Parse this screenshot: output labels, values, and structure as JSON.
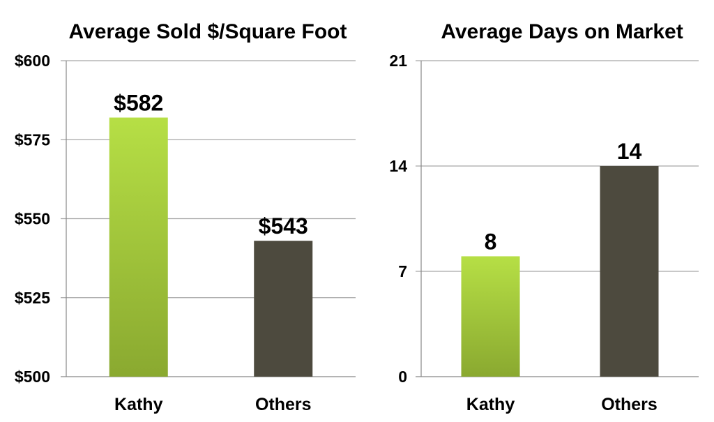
{
  "chart_data": [
    {
      "type": "bar",
      "title": "Average Sold $/Square Foot",
      "categories": [
        "Kathy",
        "Others"
      ],
      "values": [
        582,
        543
      ],
      "data_labels": [
        "$582",
        "$543"
      ],
      "ylim": [
        500,
        600
      ],
      "yticks": [
        500,
        525,
        550,
        575,
        600
      ],
      "ytick_labels": [
        "$500",
        "$525",
        "$550",
        "$575",
        "$600"
      ],
      "colors": [
        "#9cc13a",
        "#4d4a3e"
      ],
      "grid": true,
      "legend": "none"
    },
    {
      "type": "bar",
      "title": "Average Days on Market",
      "categories": [
        "Kathy",
        "Others"
      ],
      "values": [
        8,
        14
      ],
      "data_labels": [
        "8",
        "14"
      ],
      "ylim": [
        0,
        21
      ],
      "yticks": [
        0,
        7,
        14,
        21
      ],
      "ytick_labels": [
        "0",
        "7",
        "14",
        "21"
      ],
      "colors": [
        "#9cc13a",
        "#4d4a3e"
      ],
      "grid": true,
      "legend": "none"
    }
  ]
}
